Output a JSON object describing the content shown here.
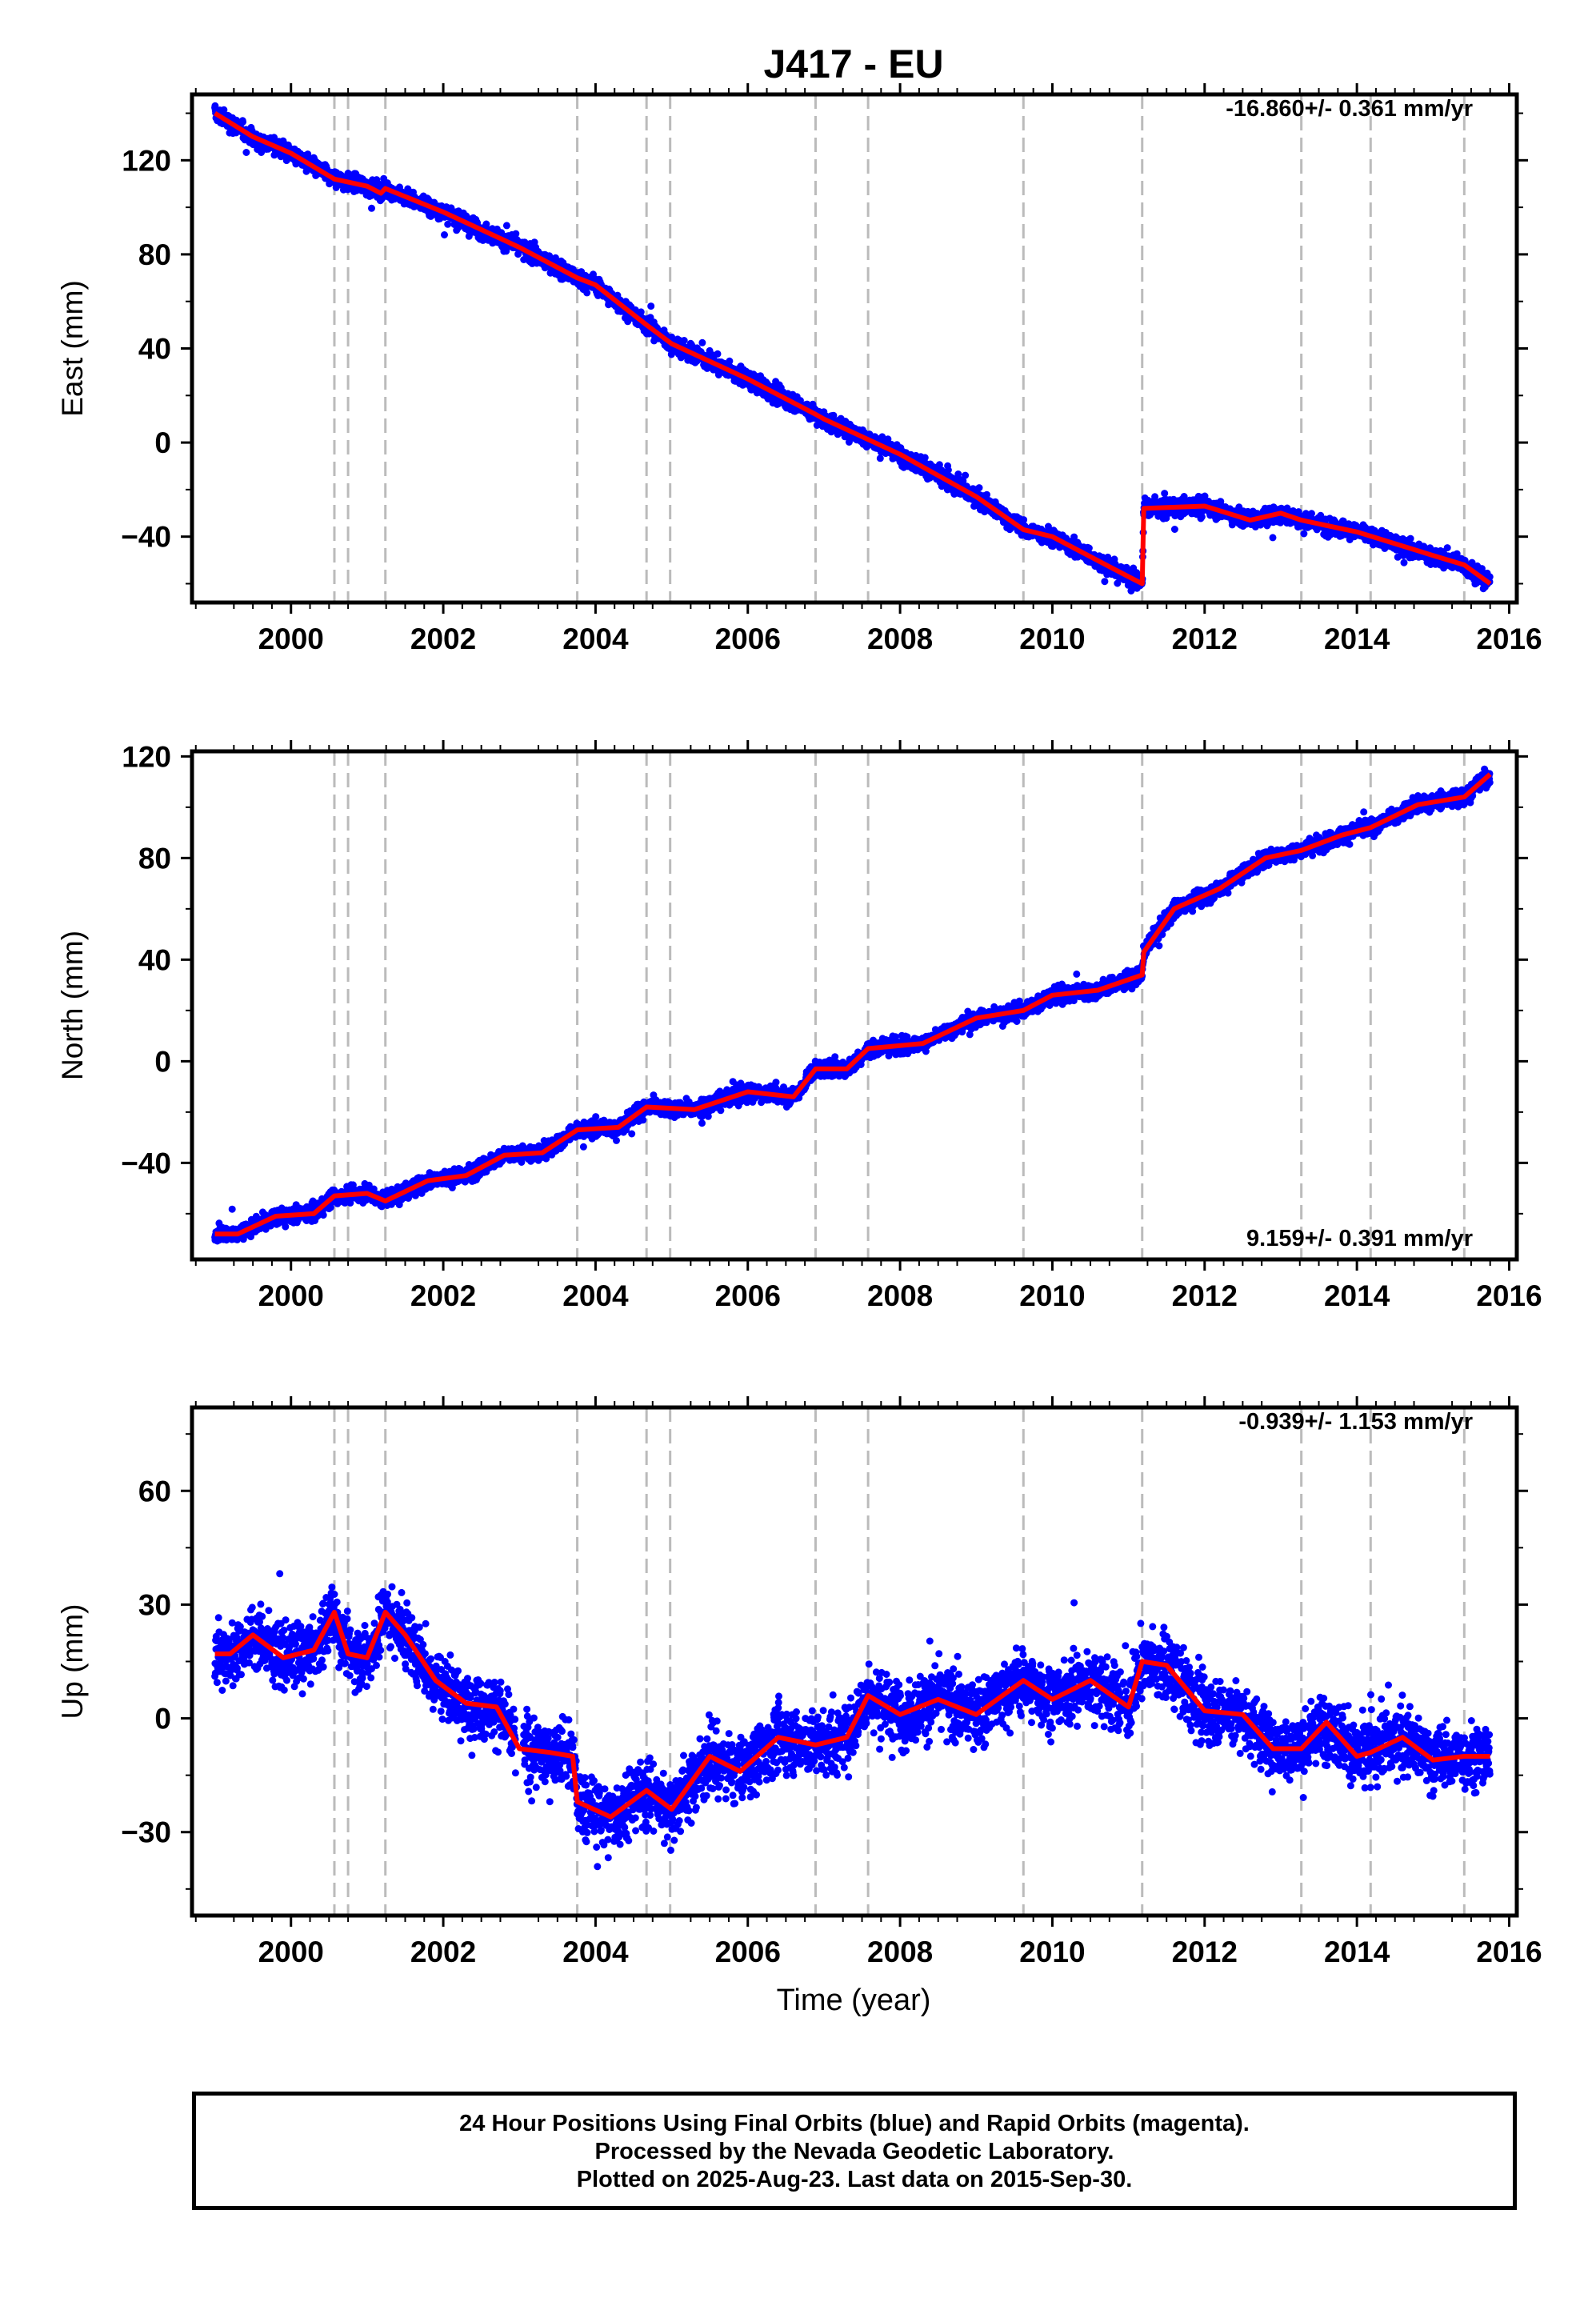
{
  "title": "J417 - EU",
  "xlabel": "Time (year)",
  "footer": [
    "24 Hour Positions Using Final Orbits (blue) and Rapid Orbits (magenta).",
    "Processed by the Nevada Geodetic Laboratory.",
    "Plotted on 2025-Aug-23. Last data on 2015-Sep-30."
  ],
  "colors": {
    "data": "#0000ff",
    "model": "#ff0000",
    "events": "#bbbbbb"
  },
  "chart_data": [
    {
      "type": "scatter",
      "ylabel": "East (mm)",
      "rate_label": "-16.860+/- 0.361 mm/yr",
      "xlim": [
        1998.7,
        2016.1
      ],
      "ylim": [
        -68,
        148
      ],
      "x_ticks": [
        2000,
        2002,
        2004,
        2006,
        2008,
        2010,
        2012,
        2014,
        2016
      ],
      "y_ticks": [
        -40,
        0,
        40,
        80,
        120
      ],
      "event_lines": [
        2000.57,
        2000.75,
        2001.24,
        2003.76,
        2004.67,
        2004.98,
        2006.89,
        2007.58,
        2009.62,
        2011.18,
        2013.27,
        2014.18,
        2015.41
      ],
      "model_series": {
        "name": "model",
        "x": [
          1999.0,
          1999.5,
          2000.0,
          2000.57,
          2001.0,
          2001.18,
          2001.24,
          2002.0,
          2003.0,
          2003.76,
          2004.0,
          2004.67,
          2005.0,
          2006.0,
          2006.89,
          2007.0,
          2008.0,
          2009.0,
          2009.62,
          2010.0,
          2011.0,
          2011.18,
          2011.2,
          2012.0,
          2012.6,
          2013.0,
          2013.27,
          2014.0,
          2015.0,
          2015.41,
          2015.75
        ],
        "y": [
          140,
          130,
          123,
          112,
          109,
          106,
          108,
          98,
          83,
          70,
          67,
          50,
          42,
          27,
          12,
          10,
          -5,
          -23,
          -37,
          -40,
          -57,
          -60,
          -28,
          -27,
          -33,
          -30,
          -33,
          -38,
          -48,
          -52,
          -60
        ]
      },
      "scatter_series": {
        "name": "daily positions",
        "noise_mm": 2.5,
        "n_points": 4500
      }
    },
    {
      "type": "scatter",
      "ylabel": "North (mm)",
      "rate_label": "9.159+/- 0.391 mm/yr",
      "xlim": [
        1998.7,
        2016.1
      ],
      "ylim": [
        -78,
        122
      ],
      "x_ticks": [
        2000,
        2002,
        2004,
        2006,
        2008,
        2010,
        2012,
        2014,
        2016
      ],
      "y_ticks": [
        -40,
        0,
        40,
        80,
        120
      ],
      "event_lines": [
        2000.57,
        2000.75,
        2001.24,
        2003.76,
        2004.67,
        2004.98,
        2006.89,
        2007.58,
        2009.62,
        2011.18,
        2013.27,
        2014.18,
        2015.41
      ],
      "model_series": {
        "name": "model",
        "x": [
          1999.0,
          1999.3,
          1999.8,
          2000.3,
          2000.57,
          2001.0,
          2001.24,
          2001.8,
          2002.3,
          2002.8,
          2003.3,
          2003.76,
          2004.3,
          2004.67,
          2005.3,
          2006.0,
          2006.6,
          2006.89,
          2007.3,
          2007.58,
          2008.3,
          2009.0,
          2009.62,
          2010.0,
          2010.6,
          2011.18,
          2011.2,
          2011.6,
          2012.2,
          2012.8,
          2013.27,
          2013.8,
          2014.18,
          2014.8,
          2015.41,
          2015.75
        ],
        "y": [
          -68,
          -68,
          -61,
          -60,
          -53,
          -52,
          -55,
          -47,
          -45,
          -37,
          -36,
          -27,
          -26,
          -18,
          -19,
          -12,
          -14,
          -3,
          -3,
          5,
          7,
          17,
          20,
          26,
          28,
          34,
          43,
          60,
          68,
          80,
          83,
          89,
          92,
          101,
          104,
          113
        ]
      },
      "scatter_series": {
        "name": "daily positions",
        "noise_mm": 2.2,
        "n_points": 4500
      }
    },
    {
      "type": "scatter",
      "ylabel": "Up (mm)",
      "rate_label": "-0.939+/- 1.153 mm/yr",
      "xlim": [
        1998.7,
        2016.1
      ],
      "ylim": [
        -52,
        82
      ],
      "x_ticks": [
        2000,
        2002,
        2004,
        2006,
        2008,
        2010,
        2012,
        2014,
        2016
      ],
      "y_ticks": [
        -30,
        0,
        30,
        60
      ],
      "event_lines": [
        2000.57,
        2000.75,
        2001.24,
        2003.76,
        2004.67,
        2004.98,
        2006.89,
        2007.58,
        2009.62,
        2011.18,
        2013.27,
        2014.18,
        2015.41
      ],
      "model_series": {
        "name": "model",
        "x": [
          1999.0,
          1999.2,
          1999.5,
          1999.9,
          2000.3,
          2000.57,
          2000.75,
          2001.0,
          2001.24,
          2001.5,
          2001.9,
          2002.3,
          2002.7,
          2003.0,
          2003.4,
          2003.7,
          2003.76,
          2004.2,
          2004.67,
          2005.0,
          2005.5,
          2005.9,
          2006.4,
          2006.89,
          2007.3,
          2007.58,
          2008.0,
          2008.5,
          2009.0,
          2009.62,
          2010.0,
          2010.5,
          2011.0,
          2011.18,
          2011.5,
          2012.0,
          2012.5,
          2012.9,
          2013.27,
          2013.6,
          2014.0,
          2014.18,
          2014.6,
          2015.0,
          2015.41,
          2015.75
        ],
        "y": [
          17,
          17,
          22,
          16,
          18,
          28,
          17,
          16,
          28,
          22,
          10,
          4,
          3,
          -8,
          -9,
          -10,
          -22,
          -26,
          -19,
          -24,
          -10,
          -14,
          -5,
          -7,
          -5,
          6,
          1,
          5,
          1,
          10,
          5,
          10,
          3,
          15,
          14,
          2,
          1,
          -8,
          -8,
          -1,
          -10,
          -9,
          -5,
          -11,
          -10,
          -10
        ]
      },
      "scatter_series": {
        "name": "daily positions",
        "noise_mm": 6.0,
        "n_points": 4500,
        "gap": [
          2002.95,
          2003.05
        ]
      }
    }
  ]
}
